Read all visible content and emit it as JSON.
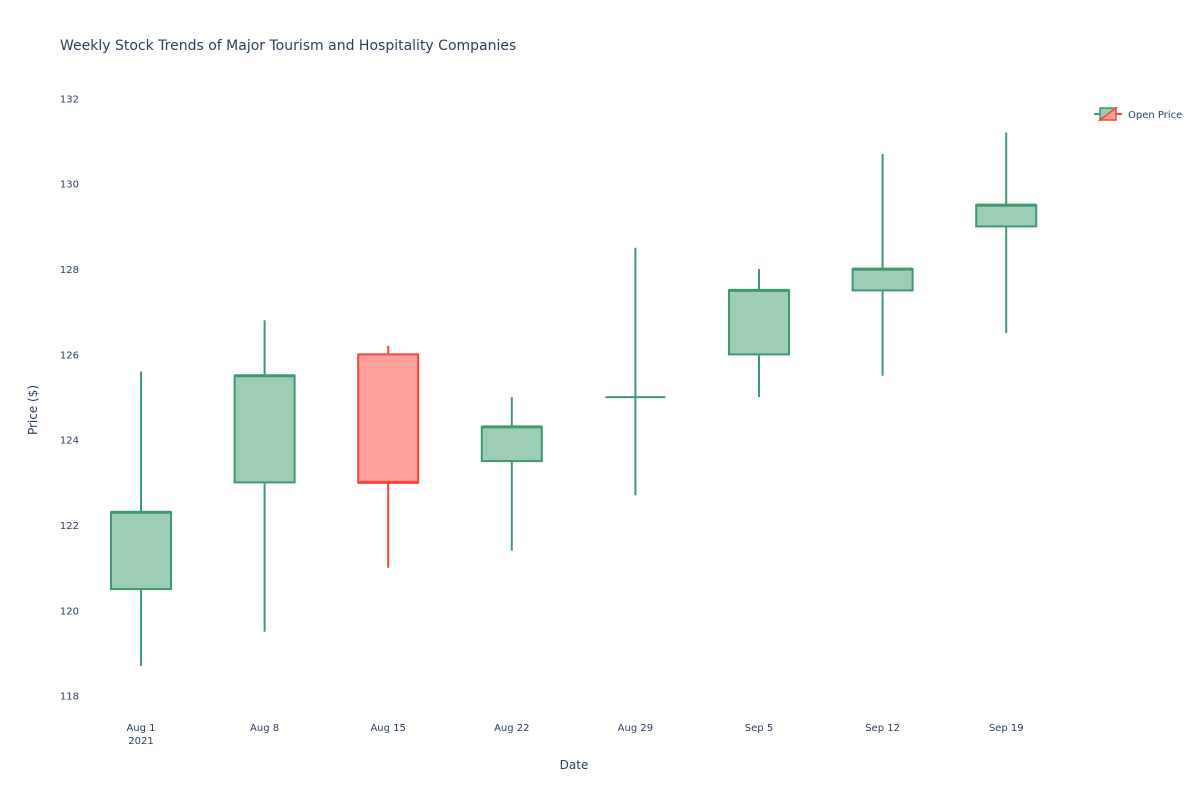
{
  "chart_data": {
    "type": "candlestick",
    "title": "Weekly Stock Trends of Major Tourism and Hospitality Companies",
    "xlabel": "Date",
    "ylabel": "Price ($)",
    "ylim": [
      117.9,
      132.9
    ],
    "y_ticks": [
      118,
      120,
      122,
      124,
      126,
      128,
      130,
      132
    ],
    "x_tick_labels": [
      "Aug 1",
      "Aug 8",
      "Aug 15",
      "Aug 22",
      "Aug 29",
      "Sep 5",
      "Sep 12",
      "Sep 19"
    ],
    "x_tick_year": "2021",
    "grid": false,
    "legend_position": "top-right",
    "increasing_color": "#3d9970",
    "increasing_fill": "#9ecdb6",
    "decreasing_color": "#ff4136",
    "decreasing_fill": "#ffa09b",
    "series": [
      {
        "name": "Open Price",
        "points": [
          {
            "date": "2021-08-01",
            "open": 120.5,
            "high": 125.6,
            "low": 118.7,
            "close": 122.3
          },
          {
            "date": "2021-08-08",
            "open": 123.0,
            "high": 126.8,
            "low": 119.5,
            "close": 125.5
          },
          {
            "date": "2021-08-15",
            "open": 126.0,
            "high": 126.2,
            "low": 121.0,
            "close": 123.0
          },
          {
            "date": "2021-08-22",
            "open": 123.5,
            "high": 125.0,
            "low": 121.4,
            "close": 124.3
          },
          {
            "date": "2021-08-29",
            "open": 125.0,
            "high": 128.5,
            "low": 122.7,
            "close": 125.0
          },
          {
            "date": "2021-09-05",
            "open": 126.0,
            "high": 128.0,
            "low": 125.0,
            "close": 127.5
          },
          {
            "date": "2021-09-12",
            "open": 127.5,
            "high": 130.7,
            "low": 125.5,
            "close": 128.0
          },
          {
            "date": "2021-09-19",
            "open": 129.0,
            "high": 131.2,
            "low": 126.5,
            "close": 129.5
          }
        ]
      }
    ]
  }
}
